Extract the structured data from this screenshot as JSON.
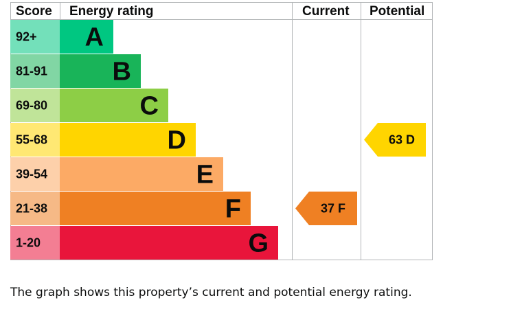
{
  "chart_data": {
    "type": "table",
    "headers": {
      "score": "Score",
      "rating": "Energy rating",
      "current": "Current",
      "potential": "Potential"
    },
    "bands": [
      {
        "score": "92+",
        "letter": "A",
        "color": "#00c781"
      },
      {
        "score": "81-91",
        "letter": "B",
        "color": "#19b459"
      },
      {
        "score": "69-80",
        "letter": "C",
        "color": "#8dce46"
      },
      {
        "score": "55-68",
        "letter": "D",
        "color": "#ffd500"
      },
      {
        "score": "39-54",
        "letter": "E",
        "color": "#fcaa65"
      },
      {
        "score": "21-38",
        "letter": "F",
        "color": "#ef8023"
      },
      {
        "score": "1-20",
        "letter": "G",
        "color": "#e9153b"
      }
    ],
    "current": {
      "value": 37,
      "letter": "F",
      "label": "37 F",
      "color": "#ef8023"
    },
    "potential": {
      "value": 63,
      "letter": "D",
      "label": "63 D",
      "color": "#ffd500"
    }
  },
  "caption": "The graph shows this property’s current and potential energy rating."
}
